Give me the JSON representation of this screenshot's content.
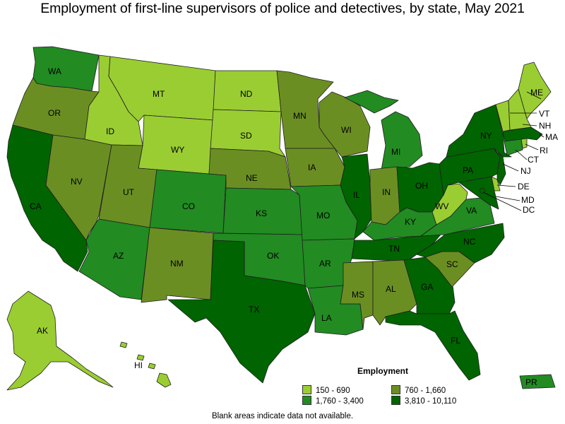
{
  "title": "Employment of first-line supervisors of police and detectives, by state, May 2021",
  "legend": {
    "title": "Employment",
    "items": [
      {
        "label": "150 - 690",
        "color": "#9acd32"
      },
      {
        "label": "760 - 1,660",
        "color": "#6b8e23"
      },
      {
        "label": "1,760 - 3,400",
        "color": "#228b22"
      },
      {
        "label": "3,810 - 10,110",
        "color": "#006400"
      }
    ]
  },
  "footnote": "Blank areas indicate data not available.",
  "states": [
    {
      "abbr": "WA",
      "bin": 2
    },
    {
      "abbr": "OR",
      "bin": 1
    },
    {
      "abbr": "CA",
      "bin": 3
    },
    {
      "abbr": "NV",
      "bin": 1
    },
    {
      "abbr": "ID",
      "bin": 0
    },
    {
      "abbr": "MT",
      "bin": 0
    },
    {
      "abbr": "WY",
      "bin": 0
    },
    {
      "abbr": "UT",
      "bin": 1
    },
    {
      "abbr": "AZ",
      "bin": 2
    },
    {
      "abbr": "CO",
      "bin": 2
    },
    {
      "abbr": "NM",
      "bin": 1
    },
    {
      "abbr": "ND",
      "bin": 0
    },
    {
      "abbr": "SD",
      "bin": 0
    },
    {
      "abbr": "NE",
      "bin": 1
    },
    {
      "abbr": "KS",
      "bin": 2
    },
    {
      "abbr": "OK",
      "bin": 2
    },
    {
      "abbr": "TX",
      "bin": 3
    },
    {
      "abbr": "MN",
      "bin": 1
    },
    {
      "abbr": "IA",
      "bin": 1
    },
    {
      "abbr": "MO",
      "bin": 2
    },
    {
      "abbr": "AR",
      "bin": 2
    },
    {
      "abbr": "LA",
      "bin": 2
    },
    {
      "abbr": "WI",
      "bin": 1
    },
    {
      "abbr": "IL",
      "bin": 3
    },
    {
      "abbr": "MI",
      "bin": 2
    },
    {
      "abbr": "IN",
      "bin": 1
    },
    {
      "abbr": "OH",
      "bin": 3
    },
    {
      "abbr": "KY",
      "bin": 2
    },
    {
      "abbr": "TN",
      "bin": 3
    },
    {
      "abbr": "MS",
      "bin": 1
    },
    {
      "abbr": "AL",
      "bin": 1
    },
    {
      "abbr": "GA",
      "bin": 3
    },
    {
      "abbr": "FL",
      "bin": 3
    },
    {
      "abbr": "SC",
      "bin": 1
    },
    {
      "abbr": "NC",
      "bin": 3
    },
    {
      "abbr": "VA",
      "bin": 2
    },
    {
      "abbr": "WV",
      "bin": 0
    },
    {
      "abbr": "MD",
      "bin": 3
    },
    {
      "abbr": "DE",
      "bin": 0
    },
    {
      "abbr": "DC",
      "bin": 3
    },
    {
      "abbr": "PA",
      "bin": 3
    },
    {
      "abbr": "NJ",
      "bin": 3
    },
    {
      "abbr": "NY",
      "bin": 3
    },
    {
      "abbr": "CT",
      "bin": 2
    },
    {
      "abbr": "RI",
      "bin": 0
    },
    {
      "abbr": "MA",
      "bin": 3
    },
    {
      "abbr": "VT",
      "bin": 0
    },
    {
      "abbr": "NH",
      "bin": 0
    },
    {
      "abbr": "ME",
      "bin": 0
    },
    {
      "abbr": "AK",
      "bin": 0
    },
    {
      "abbr": "HI",
      "bin": 0
    },
    {
      "abbr": "PR",
      "bin": 2
    }
  ]
}
